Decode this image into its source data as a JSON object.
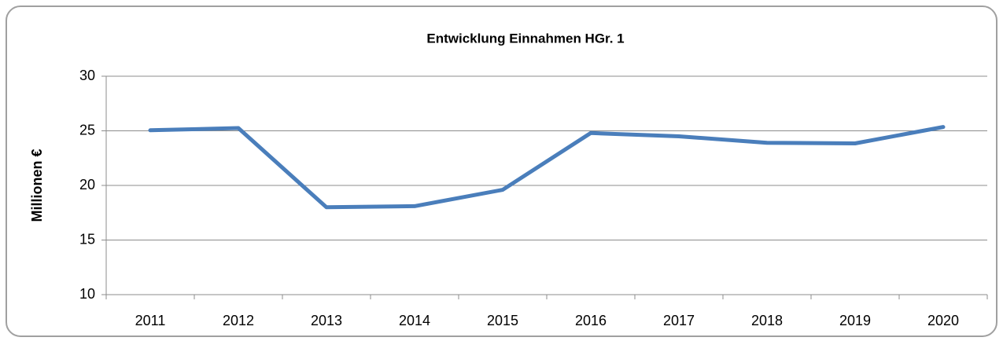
{
  "chart_data": {
    "type": "line",
    "title": "Entwicklung Einnahmen HGr. 1",
    "y_label": "Millionen €",
    "categories": [
      "2011",
      "2012",
      "2013",
      "2014",
      "2015",
      "2016",
      "2017",
      "2018",
      "2019",
      "2020"
    ],
    "values": [
      25.05,
      25.25,
      18.0,
      18.1,
      19.6,
      24.8,
      24.5,
      23.9,
      23.85,
      25.35
    ],
    "color": "#4a7ebb",
    "ylim": [
      10,
      30
    ],
    "yticks": [
      10,
      15,
      20,
      25,
      30
    ],
    "grid": true
  }
}
